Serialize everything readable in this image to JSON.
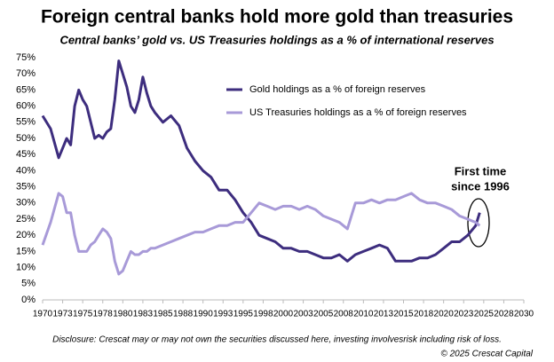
{
  "chart_data": {
    "type": "line",
    "title": "Foreign central banks hold more gold than treasuries",
    "subtitle": "Central banks’ gold vs. US Treasuries holdings as a % of international reserves",
    "x": [
      1970,
      1971,
      1972,
      1972.5,
      1973,
      1973.5,
      1974,
      1974.5,
      1975,
      1975.5,
      1976,
      1976.5,
      1977,
      1977.5,
      1978,
      1978.5,
      1979,
      1979.5,
      1980,
      1980.5,
      1981,
      1981.5,
      1982,
      1982.5,
      1983,
      1983.5,
      1984,
      1985,
      1986,
      1987,
      1988,
      1989,
      1990,
      1991,
      1992,
      1993,
      1994,
      1995,
      1996,
      1997,
      1998,
      1999,
      2000,
      2001,
      2002,
      2003,
      2004,
      2005,
      2006,
      2007,
      2008,
      2009,
      2010,
      2011,
      2012,
      2013,
      2014,
      2015,
      2016,
      2017,
      2018,
      2019,
      2020,
      2021,
      2022,
      2023,
      2024,
      2024.5
    ],
    "series": [
      {
        "name": "Gold holdings as a % of foreign reserves",
        "color": "#3d2d7e",
        "values": [
          57,
          53,
          44,
          47,
          50,
          48,
          60,
          65,
          62,
          60,
          55,
          50,
          51,
          50,
          52,
          53,
          62,
          74,
          70,
          66,
          60,
          58,
          62,
          69,
          64,
          60,
          58,
          55,
          57,
          54,
          47,
          43,
          40,
          38,
          34,
          34,
          31,
          27,
          24,
          20,
          19,
          18,
          16,
          16,
          15,
          15,
          14,
          13,
          13,
          14,
          12,
          14,
          15,
          16,
          17,
          16,
          12,
          12,
          12,
          13,
          13,
          14,
          16,
          18,
          18,
          20,
          23,
          27
        ]
      },
      {
        "name": "US Treasuries holdings as a % of foreign reserves",
        "color": "#a89ad8",
        "values": [
          17,
          24,
          33,
          32,
          27,
          27,
          20,
          15,
          15,
          15,
          17,
          18,
          20,
          22,
          21,
          19,
          12,
          8,
          9,
          12,
          15,
          14,
          14,
          15,
          15,
          16,
          16,
          17,
          18,
          19,
          20,
          21,
          21,
          22,
          23,
          23,
          24,
          24,
          27,
          30,
          29,
          28,
          29,
          29,
          28,
          29,
          28,
          26,
          25,
          24,
          22,
          30,
          30,
          31,
          30,
          31,
          31,
          32,
          33,
          31,
          30,
          30,
          29,
          28,
          26,
          25,
          24,
          23
        ]
      }
    ],
    "xlim": [
      1970,
      2030
    ],
    "xticks": [
      {
        "value": 1970,
        "label": "1970"
      },
      {
        "value": 1972.5,
        "label": "1973"
      },
      {
        "value": 1975,
        "label": "1975"
      },
      {
        "value": 1977.5,
        "label": "1978"
      },
      {
        "value": 1980,
        "label": "1980"
      },
      {
        "value": 1982.5,
        "label": "1983"
      },
      {
        "value": 1985,
        "label": "1985"
      },
      {
        "value": 1987.5,
        "label": "1988"
      },
      {
        "value": 1990,
        "label": "1990"
      },
      {
        "value": 1992.5,
        "label": "1993"
      },
      {
        "value": 1995,
        "label": "1995"
      },
      {
        "value": 1997.5,
        "label": "1998"
      },
      {
        "value": 2000,
        "label": "2000"
      },
      {
        "value": 2002.5,
        "label": "2003"
      },
      {
        "value": 2005,
        "label": "2005"
      },
      {
        "value": 2007.5,
        "label": "2008"
      },
      {
        "value": 2010,
        "label": "2010"
      },
      {
        "value": 2012.5,
        "label": "2013"
      },
      {
        "value": 2015,
        "label": "2015"
      },
      {
        "value": 2017.5,
        "label": "2018"
      },
      {
        "value": 2020,
        "label": "2020"
      },
      {
        "value": 2022.5,
        "label": "2023"
      },
      {
        "value": 2025,
        "label": "2025"
      },
      {
        "value": 2027.5,
        "label": "2028"
      },
      {
        "value": 2030,
        "label": "2030"
      }
    ],
    "ylim": [
      0,
      75
    ],
    "yticks": [
      {
        "value": 0,
        "label": "0%"
      },
      {
        "value": 5,
        "label": "5%"
      },
      {
        "value": 10,
        "label": "10%"
      },
      {
        "value": 15,
        "label": "15%"
      },
      {
        "value": 20,
        "label": "20%"
      },
      {
        "value": 25,
        "label": "25%"
      },
      {
        "value": 30,
        "label": "30%"
      },
      {
        "value": 35,
        "label": "35%"
      },
      {
        "value": 40,
        "label": "40%"
      },
      {
        "value": 45,
        "label": "45%"
      },
      {
        "value": 50,
        "label": "50%"
      },
      {
        "value": 55,
        "label": "55%"
      },
      {
        "value": 60,
        "label": "60%"
      },
      {
        "value": 65,
        "label": "65%"
      },
      {
        "value": 70,
        "label": "70%"
      },
      {
        "value": 75,
        "label": "75%"
      }
    ],
    "grid": false,
    "legend": "top",
    "annotation": [
      "First time",
      "since 1996"
    ],
    "disclosure": "Disclosure: Crescat may or may not own the securities discussed here, investing involvesrisk including risk of loss.",
    "copyright": "© 2025 Crescat Capital"
  }
}
